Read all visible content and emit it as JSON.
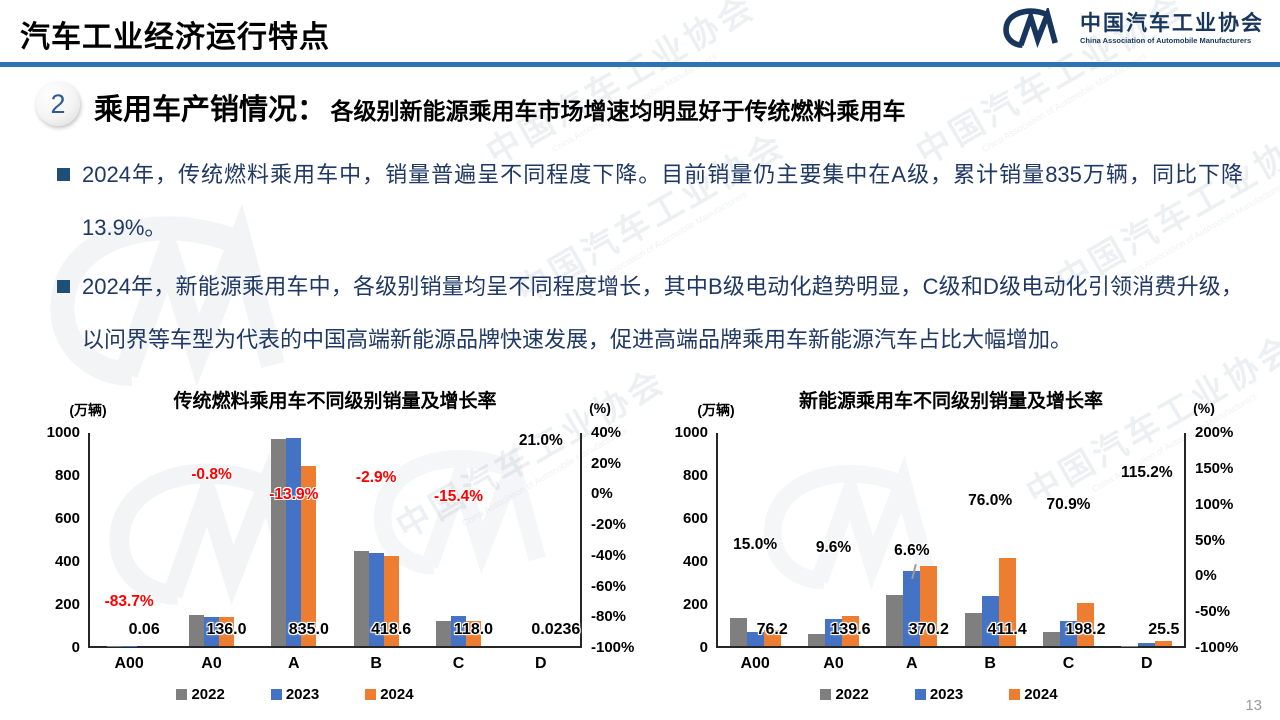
{
  "header": {
    "title": "汽车工业经济运行特点",
    "logo_cn": "中国汽车工业协会",
    "logo_en": "China Association of Automobile Manufacturers"
  },
  "section": {
    "number": "2",
    "heading_main": "乘用车产销情况：",
    "heading_sub": "各级别新能源乘用车市场增速均明显好于传统燃料乘用车"
  },
  "bullets": [
    "2024年，传统燃料乘用车中，销量普遍呈不同程度下降。目前销量仍主要集中在A级，累计销量835万辆，同比下降13.9%。",
    "2024年，新能源乘用车中，各级别销量均呈不同程度增长，其中B级电动化趋势明显，C级和D级电动化引领消费升级，以问界等车型为代表的中国高端新能源品牌快速发展，促进高端品牌乘用车新能源汽车占比大幅增加。"
  ],
  "page_number": "13",
  "watermark": {
    "cn": "中国汽车工业协会",
    "en": "China Association of Automobile Manufacturers"
  },
  "colors": {
    "rule_blue": "#2e74b5",
    "navy_text": "#1f3864",
    "logo_navy": "#17365d",
    "bar_gray": "#7f7f7f",
    "bar_blue": "#4472c4",
    "bar_orange": "#ed7d31",
    "negative_red": "#ff0000"
  },
  "chart_data": [
    {
      "type": "bar",
      "title": "传统燃料乘用车不同级别销量及增长率",
      "left_axis_unit": "(万辆)",
      "right_axis_unit": "(%)",
      "categories": [
        "A00",
        "A0",
        "A",
        "B",
        "C",
        "D"
      ],
      "series": [
        {
          "name": "2022",
          "color": "#7f7f7f",
          "values": [
            1.5,
            145,
            963,
            441,
            116,
            0.1
          ]
        },
        {
          "name": "2023",
          "color": "#4472c4",
          "values": [
            0.37,
            137,
            968,
            431,
            139,
            0.02
          ]
        },
        {
          "name": "2024",
          "color": "#ed7d31",
          "values": [
            0.06,
            136.0,
            835.0,
            418.6,
            118.0,
            0.0236
          ]
        }
      ],
      "value_labels": [
        "0.06",
        "136.0",
        "835.0",
        "418.6",
        "118.0",
        "0.0236"
      ],
      "growth_labels": [
        {
          "label": "-83.7%",
          "value": -83.7,
          "color": "#ff0000"
        },
        {
          "label": "-0.8%",
          "value": -0.8,
          "color": "#ff0000"
        },
        {
          "label": "-13.9%",
          "value": -13.9,
          "color": "#ff0000"
        },
        {
          "label": "-2.9%",
          "value": -2.9,
          "color": "#ff0000"
        },
        {
          "label": "-15.4%",
          "value": -15.4,
          "color": "#ff0000"
        },
        {
          "label": "21.0%",
          "value": 21.0,
          "color": "#000000"
        }
      ],
      "left_axis_range": [
        0,
        1000
      ],
      "left_ticks": [
        "1000",
        "800",
        "600",
        "400",
        "200",
        "0"
      ],
      "right_axis_range": [
        -100,
        40
      ],
      "right_ticks": [
        "40%",
        "20%",
        "0%",
        "-20%",
        "-40%",
        "-60%",
        "-80%",
        "-100%"
      ],
      "legend": [
        "2022",
        "2023",
        "2024"
      ],
      "legend_position": "bottom",
      "grid": false
    },
    {
      "type": "bar",
      "title": "新能源乘用车不同级别销量及增长率",
      "left_axis_unit": "(万辆)",
      "right_axis_unit": "(%)",
      "categories": [
        "A00",
        "A0",
        "A",
        "B",
        "C",
        "D"
      ],
      "series": [
        {
          "name": "2022",
          "color": "#7f7f7f",
          "values": [
            128,
            55,
            235,
            153,
            64,
            2
          ]
        },
        {
          "name": "2023",
          "color": "#4472c4",
          "values": [
            66,
            127,
            347,
            234,
            116,
            11.9
          ]
        },
        {
          "name": "2024",
          "color": "#ed7d31",
          "values": [
            76.2,
            139.6,
            370.2,
            411.4,
            198.2,
            25.5
          ]
        }
      ],
      "value_labels": [
        "76.2",
        "139.6",
        "370.2",
        "411.4",
        "198.2",
        "25.5"
      ],
      "growth_labels": [
        {
          "label": "15.0%",
          "value": 15.0,
          "color": "#000000"
        },
        {
          "label": "9.6%",
          "value": 9.6,
          "color": "#000000"
        },
        {
          "label": "6.6%",
          "value": 6.6,
          "color": "#000000",
          "leader": true
        },
        {
          "label": "76.0%",
          "value": 76.0,
          "color": "#000000"
        },
        {
          "label": "70.9%",
          "value": 70.9,
          "color": "#000000"
        },
        {
          "label": "115.2%",
          "value": 115.2,
          "color": "#000000"
        }
      ],
      "left_axis_range": [
        0,
        1000
      ],
      "left_ticks": [
        "1000",
        "800",
        "600",
        "400",
        "200",
        "0"
      ],
      "right_axis_range": [
        -100,
        200
      ],
      "right_ticks": [
        "200%",
        "150%",
        "100%",
        "50%",
        "0%",
        "-50%",
        "-100%"
      ],
      "legend": [
        "2022",
        "2023",
        "2024"
      ],
      "legend_position": "bottom",
      "grid": false
    }
  ]
}
